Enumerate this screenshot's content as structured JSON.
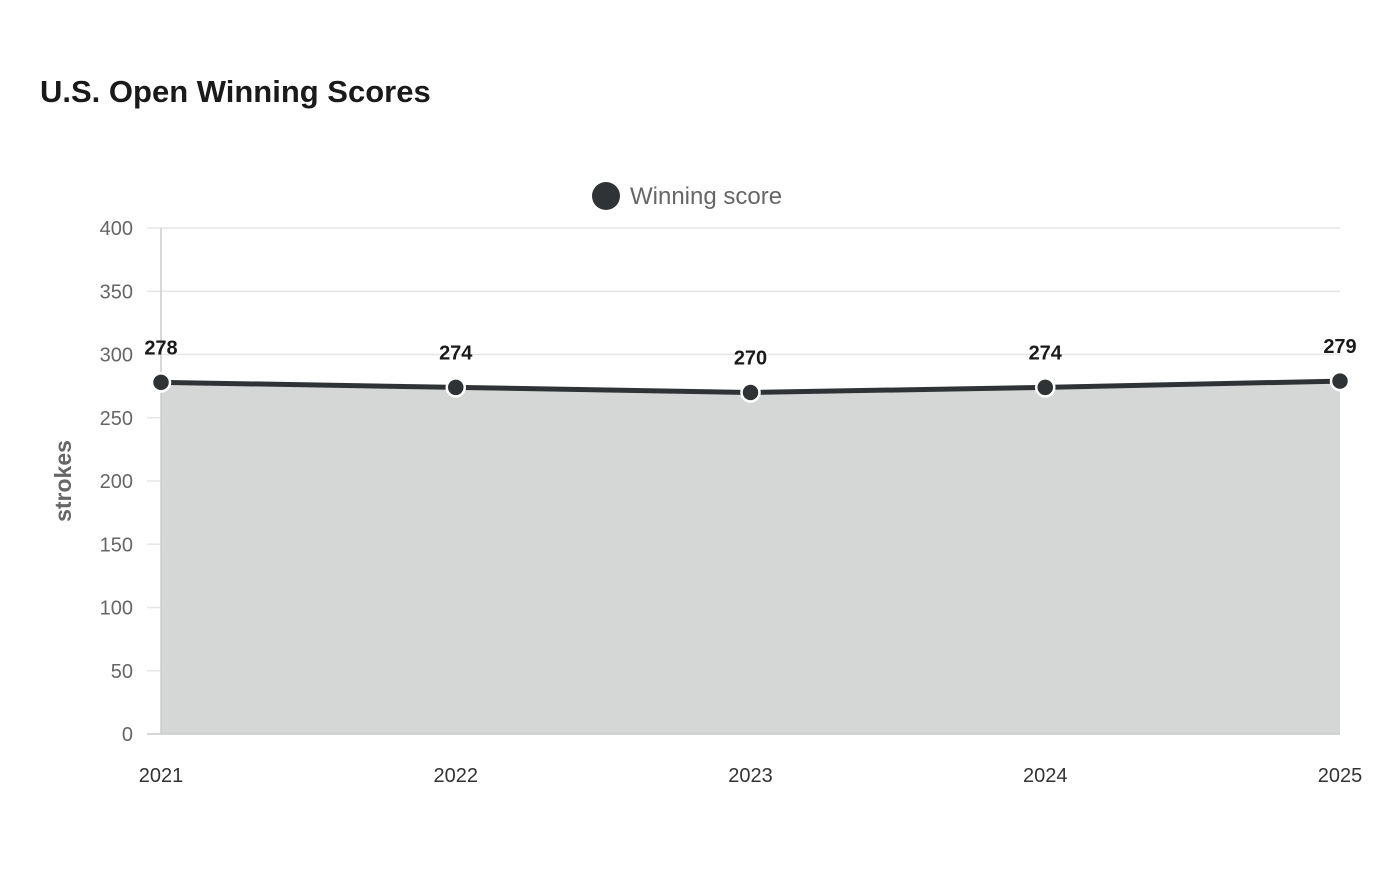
{
  "title": "U.S. Open Winning Scores",
  "colors": {
    "line": "#2f3335",
    "area": "#d5d7d6",
    "grid": "#e6e6e6",
    "marker_stroke": "#ffffff"
  },
  "chart_data": {
    "type": "area",
    "title": "U.S. Open Winning Scores",
    "categories": [
      "2021",
      "2022",
      "2023",
      "2024",
      "2025"
    ],
    "series": [
      {
        "name": "Winning score",
        "values": [
          278,
          274,
          270,
          274,
          279
        ]
      }
    ],
    "xlabel": "",
    "ylabel": "strokes",
    "ylim": [
      0,
      400
    ],
    "yticks": [
      0,
      50,
      100,
      150,
      200,
      250,
      300,
      350,
      400
    ],
    "grid": true,
    "legend_position": "top-center",
    "data_labels": true
  }
}
